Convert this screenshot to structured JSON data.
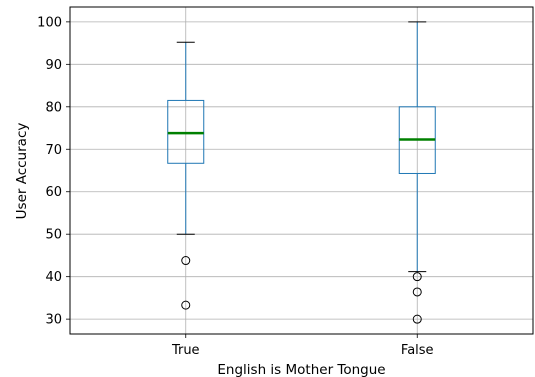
{
  "chart_data": {
    "type": "box",
    "xlabel": "English is Mother Tongue",
    "ylabel": "User Accuracy",
    "ylim": [
      26.5,
      103.5
    ],
    "yticks": [
      30,
      40,
      50,
      60,
      70,
      80,
      90,
      100
    ],
    "grid": true,
    "colors": {
      "box": "#1f77b4",
      "median": "#008000",
      "cap": "#000000",
      "grid": "#b0b0b0"
    },
    "groups": [
      {
        "category": "True",
        "whisker_low": 50.0,
        "q1": 66.7,
        "median": 73.8,
        "q3": 81.5,
        "whisker_high": 95.2,
        "outliers": [
          43.8,
          33.3
        ]
      },
      {
        "category": "False",
        "whisker_low": 41.2,
        "q1": 64.3,
        "median": 72.3,
        "q3": 80.0,
        "whisker_high": 100.0,
        "outliers": [
          40.0,
          36.4,
          30.0
        ]
      }
    ]
  }
}
